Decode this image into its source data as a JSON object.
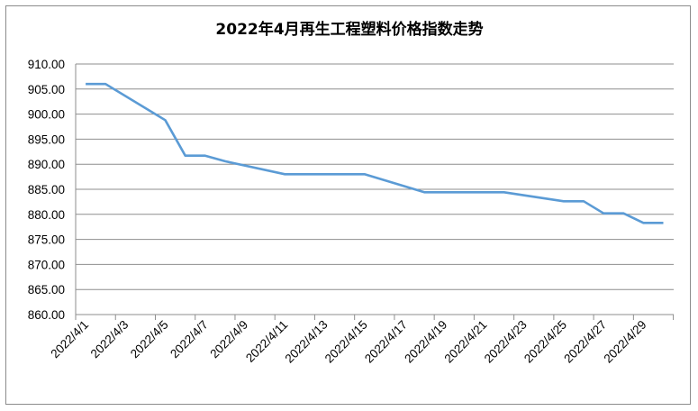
{
  "chart_data": {
    "type": "line",
    "title": "2022年4月再生工程塑料价格指数走势",
    "xlabel": "",
    "ylabel": "",
    "ylim": [
      860,
      910
    ],
    "ytick_step": 5,
    "ytick_format": "2dp",
    "x_tick_labels": [
      "2022/4/1",
      "2022/4/3",
      "2022/4/5",
      "2022/4/7",
      "2022/4/9",
      "2022/4/11",
      "2022/4/13",
      "2022/4/15",
      "2022/4/17",
      "2022/4/19",
      "2022/4/21",
      "2022/4/23",
      "2022/4/25",
      "2022/4/27",
      "2022/4/29"
    ],
    "x": [
      "2022/4/1",
      "2022/4/2",
      "2022/4/5",
      "2022/4/6",
      "2022/4/7",
      "2022/4/8",
      "2022/4/11",
      "2022/4/12",
      "2022/4/13",
      "2022/4/14",
      "2022/4/15",
      "2022/4/18",
      "2022/4/19",
      "2022/4/20",
      "2022/4/21",
      "2022/4/22",
      "2022/4/25",
      "2022/4/26",
      "2022/4/27",
      "2022/4/28",
      "2022/4/29",
      "2022/4/30"
    ],
    "values": [
      906.0,
      906.0,
      898.8,
      891.7,
      891.7,
      890.6,
      888.0,
      888.0,
      888.0,
      888.0,
      888.0,
      884.4,
      884.4,
      884.4,
      884.4,
      884.4,
      882.6,
      882.6,
      880.2,
      880.2,
      878.3,
      878.3
    ],
    "grid": true,
    "legend": "none",
    "series_color": "#5b9bd5"
  }
}
